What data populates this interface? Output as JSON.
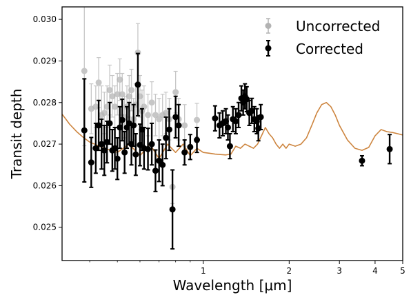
{
  "chart_data": {
    "type": "scatter",
    "xlabel": "Wavelength [μm]",
    "ylabel": "Transit depth",
    "xscale": "log",
    "xlim": [
      0.32,
      5.0
    ],
    "ylim": [
      0.0242,
      0.0303
    ],
    "xticks": [
      {
        "value": 1,
        "label": "1"
      },
      {
        "value": 2,
        "label": "2"
      },
      {
        "value": 3,
        "label": "3"
      },
      {
        "value": 4,
        "label": "4"
      },
      {
        "value": 5,
        "label": "5"
      }
    ],
    "yticks": [
      {
        "value": 0.025,
        "label": "0.025"
      },
      {
        "value": 0.026,
        "label": "0.026"
      },
      {
        "value": 0.027,
        "label": "0.027"
      },
      {
        "value": 0.028,
        "label": "0.028"
      },
      {
        "value": 0.029,
        "label": "0.029"
      },
      {
        "value": 0.03,
        "label": "0.030"
      }
    ],
    "legend_position": "top-right",
    "grid": false,
    "model": {
      "color": "#cd853f",
      "x": [
        0.32,
        0.33,
        0.34,
        0.36,
        0.38,
        0.4,
        0.45,
        0.5,
        0.55,
        0.6,
        0.65,
        0.7,
        0.75,
        0.8,
        0.85,
        0.9,
        0.95,
        1.0,
        1.05,
        1.1,
        1.15,
        1.2,
        1.25,
        1.3,
        1.35,
        1.4,
        1.45,
        1.5,
        1.55,
        1.6,
        1.65,
        1.7,
        1.75,
        1.8,
        1.85,
        1.9,
        1.95,
        2.0,
        2.1,
        2.2,
        2.3,
        2.4,
        2.5,
        2.6,
        2.7,
        2.8,
        2.9,
        3.0,
        3.2,
        3.4,
        3.6,
        3.8,
        4.0,
        4.2,
        4.4,
        4.6,
        4.8,
        5.0
      ],
      "y": [
        0.02772,
        0.0276,
        0.02748,
        0.0273,
        0.02716,
        0.02705,
        0.0269,
        0.0268,
        0.027,
        0.02672,
        0.027,
        0.02665,
        0.027,
        0.0268,
        0.027,
        0.02672,
        0.0269,
        0.0268,
        0.02678,
        0.02676,
        0.02675,
        0.02674,
        0.02676,
        0.02695,
        0.0269,
        0.027,
        0.02695,
        0.0269,
        0.027,
        0.0272,
        0.0274,
        0.02725,
        0.02715,
        0.027,
        0.0269,
        0.027,
        0.0269,
        0.027,
        0.02695,
        0.027,
        0.02715,
        0.02745,
        0.02775,
        0.02795,
        0.028,
        0.0279,
        0.0277,
        0.02745,
        0.0271,
        0.0269,
        0.02685,
        0.02692,
        0.0272,
        0.02735,
        0.0273,
        0.02728,
        0.02725,
        0.02722
      ]
    },
    "series": [
      {
        "name": "Uncorrected",
        "color": "#b3b3b3",
        "points": [
          [
            0.383,
            0.02876,
            0.0018
          ],
          [
            0.405,
            0.02785,
            0.0006
          ],
          [
            0.42,
            0.0279,
            0.0005
          ],
          [
            0.43,
            0.02848,
            0.0006
          ],
          [
            0.44,
            0.0277,
            0.0007
          ],
          [
            0.45,
            0.02775,
            0.0005
          ],
          [
            0.46,
            0.0279,
            0.0005
          ],
          [
            0.47,
            0.0283,
            0.0006
          ],
          [
            0.48,
            0.02815,
            0.0005
          ],
          [
            0.49,
            0.0279,
            0.0005
          ],
          [
            0.5,
            0.0282,
            0.0005
          ],
          [
            0.51,
            0.02855,
            0.0005
          ],
          [
            0.52,
            0.0282,
            0.0005
          ],
          [
            0.53,
            0.02765,
            0.0005
          ],
          [
            0.54,
            0.0279,
            0.0005
          ],
          [
            0.55,
            0.02815,
            0.0005
          ],
          [
            0.56,
            0.0283,
            0.0005
          ],
          [
            0.57,
            0.0276,
            0.0005
          ],
          [
            0.58,
            0.02795,
            0.0005
          ],
          [
            0.59,
            0.0292,
            0.0007
          ],
          [
            0.6,
            0.02815,
            0.0005
          ],
          [
            0.61,
            0.0278,
            0.0005
          ],
          [
            0.62,
            0.0279,
            0.0005
          ],
          [
            0.64,
            0.0277,
            0.0005
          ],
          [
            0.66,
            0.028,
            0.0005
          ],
          [
            0.68,
            0.0277,
            0.0005
          ],
          [
            0.7,
            0.0276,
            0.0005
          ],
          [
            0.72,
            0.0277,
            0.0005
          ],
          [
            0.74,
            0.02775,
            0.0005
          ],
          [
            0.76,
            0.0276,
            0.0005
          ],
          [
            0.78,
            0.02597,
            0.0004
          ],
          [
            0.8,
            0.02825,
            0.0005
          ],
          [
            0.82,
            0.0276,
            0.0005
          ],
          [
            0.86,
            0.02745,
            0.0005
          ],
          [
            0.95,
            0.02758,
            0.0004
          ]
        ]
      },
      {
        "name": "Corrected",
        "color": "#000000",
        "points": [
          [
            0.383,
            0.02733,
            0.00124
          ],
          [
            0.405,
            0.02656,
            0.0006
          ],
          [
            0.42,
            0.0269,
            0.0006
          ],
          [
            0.43,
            0.02745,
            0.0006
          ],
          [
            0.44,
            0.027,
            0.0006
          ],
          [
            0.45,
            0.02685,
            0.0006
          ],
          [
            0.46,
            0.02705,
            0.0005
          ],
          [
            0.47,
            0.0275,
            0.0005
          ],
          [
            0.48,
            0.02685,
            0.0005
          ],
          [
            0.49,
            0.0269,
            0.0005
          ],
          [
            0.5,
            0.02665,
            0.0005
          ],
          [
            0.51,
            0.0274,
            0.0005
          ],
          [
            0.52,
            0.02758,
            0.0005
          ],
          [
            0.53,
            0.0268,
            0.0005
          ],
          [
            0.54,
            0.0274,
            0.0005
          ],
          [
            0.55,
            0.0275,
            0.0005
          ],
          [
            0.56,
            0.027,
            0.0005
          ],
          [
            0.57,
            0.02745,
            0.0005
          ],
          [
            0.58,
            0.02675,
            0.0005
          ],
          [
            0.59,
            0.02843,
            0.00075
          ],
          [
            0.6,
            0.02698,
            0.0005
          ],
          [
            0.61,
            0.02735,
            0.0005
          ],
          [
            0.62,
            0.0269,
            0.0005
          ],
          [
            0.64,
            0.02688,
            0.0005
          ],
          [
            0.66,
            0.027,
            0.0005
          ],
          [
            0.68,
            0.02636,
            0.0005
          ],
          [
            0.7,
            0.0266,
            0.0005
          ],
          [
            0.72,
            0.0265,
            0.0005
          ],
          [
            0.74,
            0.02715,
            0.0005
          ],
          [
            0.76,
            0.02735,
            0.0005
          ],
          [
            0.78,
            0.02543,
            0.00095
          ],
          [
            0.8,
            0.02765,
            0.0005
          ],
          [
            0.82,
            0.02745,
            0.0005
          ],
          [
            0.86,
            0.0268,
            0.0003
          ],
          [
            0.9,
            0.02693,
            0.0003
          ],
          [
            0.95,
            0.0271,
            0.0003
          ],
          [
            1.1,
            0.02762,
            0.0003
          ],
          [
            1.14,
            0.02745,
            0.0003
          ],
          [
            1.17,
            0.0275,
            0.0003
          ],
          [
            1.2,
            0.02755,
            0.0003
          ],
          [
            1.22,
            0.0274,
            0.0003
          ],
          [
            1.24,
            0.02695,
            0.0003
          ],
          [
            1.27,
            0.0276,
            0.0003
          ],
          [
            1.3,
            0.02755,
            0.0003
          ],
          [
            1.33,
            0.0277,
            0.0003
          ],
          [
            1.36,
            0.0281,
            0.0003
          ],
          [
            1.38,
            0.028,
            0.0003
          ],
          [
            1.4,
            0.02815,
            0.0003
          ],
          [
            1.42,
            0.02808,
            0.0003
          ],
          [
            1.45,
            0.02775,
            0.0003
          ],
          [
            1.48,
            0.0278,
            0.0003
          ],
          [
            1.51,
            0.0276,
            0.0003
          ],
          [
            1.54,
            0.02755,
            0.0003
          ],
          [
            1.56,
            0.02738,
            0.0003
          ],
          [
            1.59,
            0.02765,
            0.0003
          ],
          [
            3.6,
            0.0266,
            0.00012
          ],
          [
            4.5,
            0.02688,
            0.00035
          ]
        ]
      }
    ]
  }
}
